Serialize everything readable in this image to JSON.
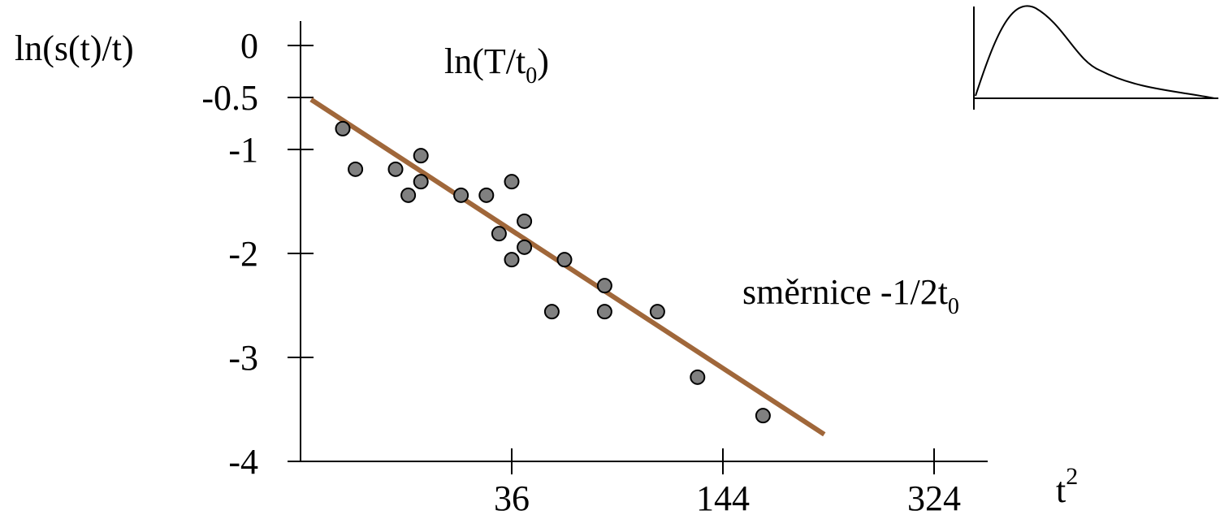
{
  "chart_data": {
    "type": "scatter",
    "ylabel": "ln(s(t)/t)",
    "xlabel": "t",
    "xlabel_superscript": "2",
    "intercept_label": "ln(T/t",
    "intercept_label_sub": "0",
    "intercept_label_close": ")",
    "slope_label": "směrnice -1/2t",
    "slope_label_sub": "0",
    "y_ticks": [
      {
        "label": "0",
        "value": 0
      },
      {
        "label": "-0.5",
        "value": -0.5
      },
      {
        "label": "-1",
        "value": -1
      },
      {
        "label": "-2",
        "value": -2
      },
      {
        "label": "-3",
        "value": -3
      },
      {
        "label": "-4",
        "value": -4
      }
    ],
    "x_ticks": [
      {
        "label": "36",
        "value": 1
      },
      {
        "label": "144",
        "value": 2
      },
      {
        "label": "324",
        "value": 3
      }
    ],
    "xlim": [
      0,
      3.3
    ],
    "ylim": [
      -4,
      0.3
    ],
    "points": [
      {
        "x": 0.2,
        "y": -0.8
      },
      {
        "x": 0.26,
        "y": -1.19
      },
      {
        "x": 0.45,
        "y": -1.19
      },
      {
        "x": 0.51,
        "y": -1.44
      },
      {
        "x": 0.57,
        "y": -1.06
      },
      {
        "x": 0.57,
        "y": -1.31
      },
      {
        "x": 0.76,
        "y": -1.44
      },
      {
        "x": 0.88,
        "y": -1.44
      },
      {
        "x": 0.94,
        "y": -1.81
      },
      {
        "x": 1.0,
        "y": -1.31
      },
      {
        "x": 1.0,
        "y": -2.06
      },
      {
        "x": 1.06,
        "y": -1.69
      },
      {
        "x": 1.06,
        "y": -1.94
      },
      {
        "x": 1.19,
        "y": -2.56
      },
      {
        "x": 1.25,
        "y": -2.06
      },
      {
        "x": 1.44,
        "y": -2.31
      },
      {
        "x": 1.44,
        "y": -2.56
      },
      {
        "x": 1.69,
        "y": -2.56
      },
      {
        "x": 1.88,
        "y": -3.19
      },
      {
        "x": 2.19,
        "y": -3.56
      }
    ],
    "fit_line": {
      "x1": 0.05,
      "y1": -0.52,
      "x2": 2.48,
      "y2": -3.74
    },
    "grid": false,
    "colors": {
      "line": "#a0673a",
      "point_fill": "#808080",
      "point_stroke": "#000000",
      "axis": "#000000"
    },
    "inset": {
      "type": "line",
      "description_shape": "skewed-peak-curve"
    }
  }
}
